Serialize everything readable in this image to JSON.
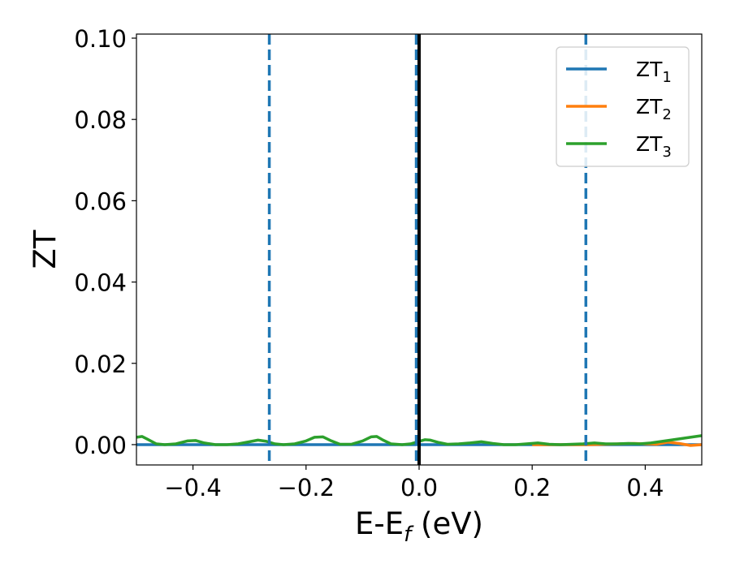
{
  "chart_data": {
    "type": "line",
    "xlabel": "E-E",
    "xlabel_sub": "f",
    "xlabel_unit": " (eV)",
    "ylabel": "ZT",
    "xlim": [
      -0.5,
      0.5
    ],
    "ylim": [
      -0.005,
      0.101
    ],
    "x_ticks": [
      -0.4,
      -0.2,
      0.0,
      0.2,
      0.4
    ],
    "x_tick_labels": [
      "−0.4",
      "−0.2",
      "0.0",
      "0.2",
      "0.4"
    ],
    "y_ticks": [
      0.0,
      0.02,
      0.04,
      0.06,
      0.08,
      0.1
    ],
    "y_tick_labels": [
      "0.00",
      "0.02",
      "0.04",
      "0.06",
      "0.08",
      "0.10"
    ],
    "grid": false,
    "legend_position": "top-right",
    "series": [
      {
        "name": "ZT",
        "name_sub": "1",
        "color": "#1f77b4",
        "x": [
          -0.5,
          0.5
        ],
        "y": [
          0.0,
          0.0
        ]
      },
      {
        "name": "ZT",
        "name_sub": "2",
        "color": "#ff7f0e",
        "x": [
          0.2,
          0.3,
          0.38,
          0.42,
          0.44,
          0.46,
          0.48,
          0.5
        ],
        "y": [
          0.0,
          0.0,
          0.0003,
          0.0001,
          0.0006,
          0.0003,
          -0.0002,
          0.0
        ]
      },
      {
        "name": "ZT",
        "name_sub": "3",
        "color": "#2ca02c",
        "x": [
          -0.5,
          -0.49,
          -0.48,
          -0.465,
          -0.45,
          -0.43,
          -0.41,
          -0.395,
          -0.38,
          -0.36,
          -0.34,
          -0.32,
          -0.3,
          -0.285,
          -0.27,
          -0.255,
          -0.24,
          -0.22,
          -0.2,
          -0.185,
          -0.17,
          -0.155,
          -0.14,
          -0.12,
          -0.1,
          -0.085,
          -0.075,
          -0.065,
          -0.05,
          -0.03,
          -0.015,
          0.0,
          0.01,
          0.02,
          0.035,
          0.05,
          0.07,
          0.09,
          0.11,
          0.13,
          0.15,
          0.17,
          0.19,
          0.21,
          0.23,
          0.25,
          0.27,
          0.29,
          0.31,
          0.33,
          0.35,
          0.37,
          0.39,
          0.41,
          0.43,
          0.45,
          0.47,
          0.49,
          0.5
        ],
        "y": [
          0.0018,
          0.002,
          0.0013,
          0.0002,
          0.0,
          0.0002,
          0.0009,
          0.001,
          0.0004,
          0.0,
          0.0,
          0.0002,
          0.0007,
          0.0011,
          0.0008,
          0.0002,
          0.0,
          0.0002,
          0.0009,
          0.0018,
          0.0019,
          0.0009,
          0.0001,
          0.0001,
          0.0009,
          0.0019,
          0.002,
          0.0012,
          0.0002,
          0.0,
          0.0002,
          0.0008,
          0.0012,
          0.0011,
          0.0005,
          0.0001,
          0.0002,
          0.0004,
          0.0007,
          0.0003,
          0.0,
          0.0,
          0.0002,
          0.0004,
          0.0001,
          0.0,
          0.0001,
          0.0002,
          0.0004,
          0.0002,
          0.0002,
          0.0003,
          0.0002,
          0.0004,
          0.0008,
          0.0012,
          0.0016,
          0.002,
          0.0022
        ]
      }
    ],
    "vertical_lines": [
      {
        "x": -0.265,
        "style": "dashed",
        "color": "#1f77b4"
      },
      {
        "x": -0.005,
        "style": "dashed",
        "color": "#1f77b4"
      },
      {
        "x": 0.295,
        "style": "dashed",
        "color": "#1f77b4"
      },
      {
        "x": 0.0,
        "style": "solid",
        "color": "#000000"
      }
    ]
  }
}
